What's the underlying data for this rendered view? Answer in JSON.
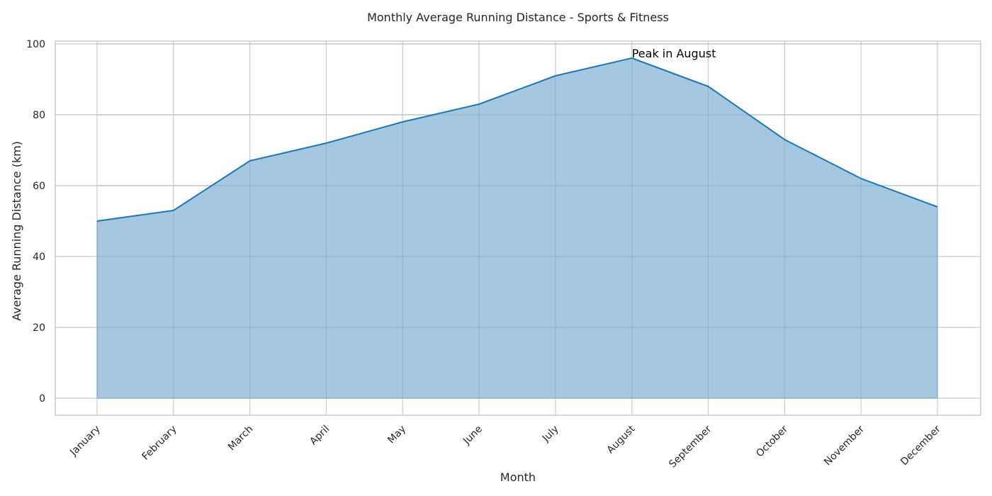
{
  "chart_data": {
    "type": "area",
    "title": "Monthly Average Running Distance - Sports & Fitness",
    "xlabel": "Month",
    "ylabel": "Average Running Distance (km)",
    "categories": [
      "January",
      "February",
      "March",
      "April",
      "May",
      "June",
      "July",
      "August",
      "September",
      "October",
      "November",
      "December"
    ],
    "values": [
      50,
      53,
      67,
      72,
      78,
      83,
      91,
      96,
      88,
      73,
      62,
      54
    ],
    "ylim": [
      -4.8,
      100.8
    ],
    "yticks": [
      0,
      20,
      40,
      60,
      80,
      100
    ],
    "grid": true,
    "annotation": {
      "text": "Peak in August",
      "category": "August",
      "value": 96
    },
    "colors": {
      "line": "#1f77b4",
      "fill": "#a5c7df",
      "grid": "#cccccc",
      "frame": "#cccccc"
    }
  }
}
